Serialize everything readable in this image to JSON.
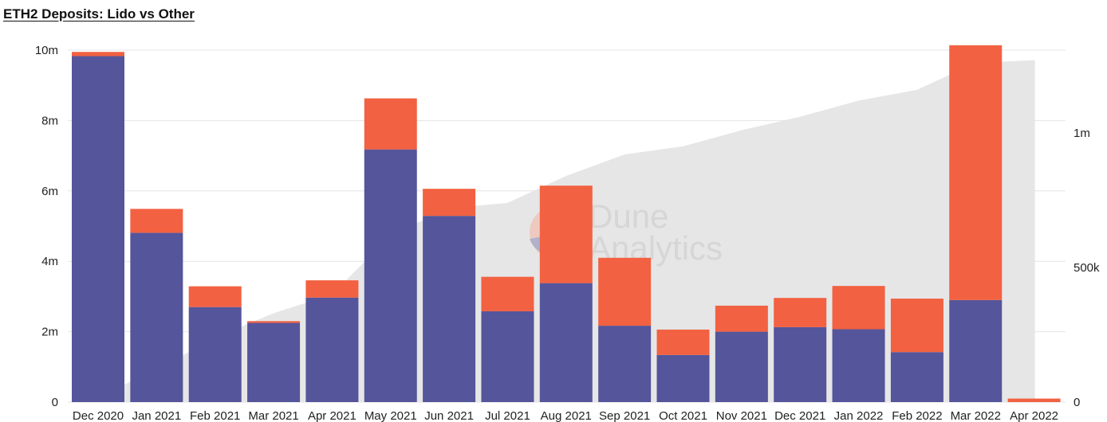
{
  "chart_data": {
    "type": "bar",
    "title": "ETH2 Deposits: Lido vs Other",
    "stacked": true,
    "categories": [
      "Dec 2020",
      "Jan 2021",
      "Feb 2021",
      "Mar 2021",
      "Apr 2021",
      "May 2021",
      "Jun 2021",
      "Jul 2021",
      "Aug 2021",
      "Sep 2021",
      "Oct 2021",
      "Nov 2021",
      "Dec 2021",
      "Jan 2022",
      "Feb 2022",
      "Mar 2022",
      "Apr 2022"
    ],
    "series": [
      {
        "color": "#55559b",
        "values": [
          9830000,
          4810000,
          2700000,
          2250000,
          2970000,
          7180000,
          5290000,
          2580000,
          3380000,
          2170000,
          1340000,
          2000000,
          2130000,
          2070000,
          1420000,
          2900000,
          0
        ]
      },
      {
        "color": "#f26141",
        "values": [
          120000,
          680000,
          590000,
          50000,
          490000,
          1450000,
          770000,
          980000,
          2770000,
          1930000,
          720000,
          740000,
          830000,
          1230000,
          1520000,
          7240000,
          100000
        ]
      }
    ],
    "area": {
      "color": "#e6e6e6",
      "axis": "right",
      "values": [
        20000,
        120000,
        240000,
        330000,
        400000,
        620000,
        720000,
        740000,
        840000,
        920000,
        950000,
        1010000,
        1060000,
        1120000,
        1160000,
        1260000,
        1270000
      ]
    },
    "ylim": [
      0,
      10000000
    ],
    "y_ticks": [
      {
        "value": 0,
        "label": "0"
      },
      {
        "value": 2000000,
        "label": "2m"
      },
      {
        "value": 4000000,
        "label": "4m"
      },
      {
        "value": 6000000,
        "label": "6m"
      },
      {
        "value": 8000000,
        "label": "8m"
      },
      {
        "value": 10000000,
        "label": "10m"
      }
    ],
    "y2lim": [
      0,
      1260000
    ],
    "y2_ticks": [
      {
        "value": 0,
        "label": "0"
      },
      {
        "value": 500000,
        "label": "500k"
      },
      {
        "value": 1000000,
        "label": "1m"
      }
    ],
    "grid": true,
    "xlabel": "",
    "ylabel": ""
  },
  "watermark": {
    "line1": "Dune",
    "line2": "Analytics"
  }
}
